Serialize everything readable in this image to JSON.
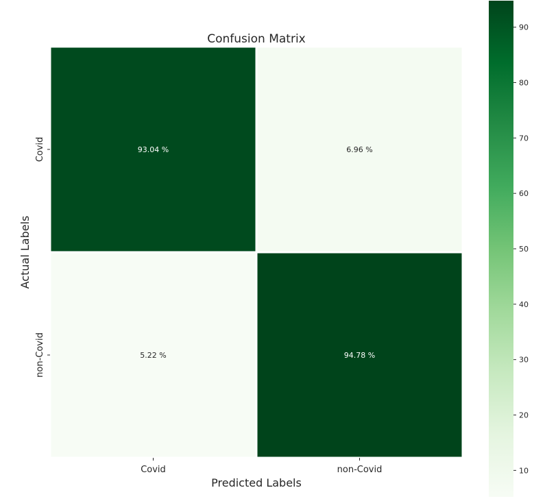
{
  "chart_data": {
    "type": "heatmap",
    "title": "Confusion Matrix",
    "xlabel": "Predicted Labels",
    "ylabel": "Actual Labels",
    "x_categories": [
      "Covid",
      "non-Covid"
    ],
    "y_categories": [
      "Covid",
      "non-Covid"
    ],
    "values": [
      [
        93.04,
        6.96
      ],
      [
        5.22,
        94.78
      ]
    ],
    "cell_labels": [
      [
        "93.04 %",
        "6.96 %"
      ],
      [
        "5.22 %",
        "94.78 %"
      ]
    ],
    "colorbar": {
      "min": 5.22,
      "max": 94.78,
      "ticks": [
        10,
        20,
        30,
        40,
        50,
        60,
        70,
        80,
        90
      ],
      "colormap": "Greens"
    },
    "colors": {
      "low": "#f7fcf5",
      "high": "#00441b",
      "dark_text": "#ffffff",
      "light_text": "#262626"
    }
  }
}
